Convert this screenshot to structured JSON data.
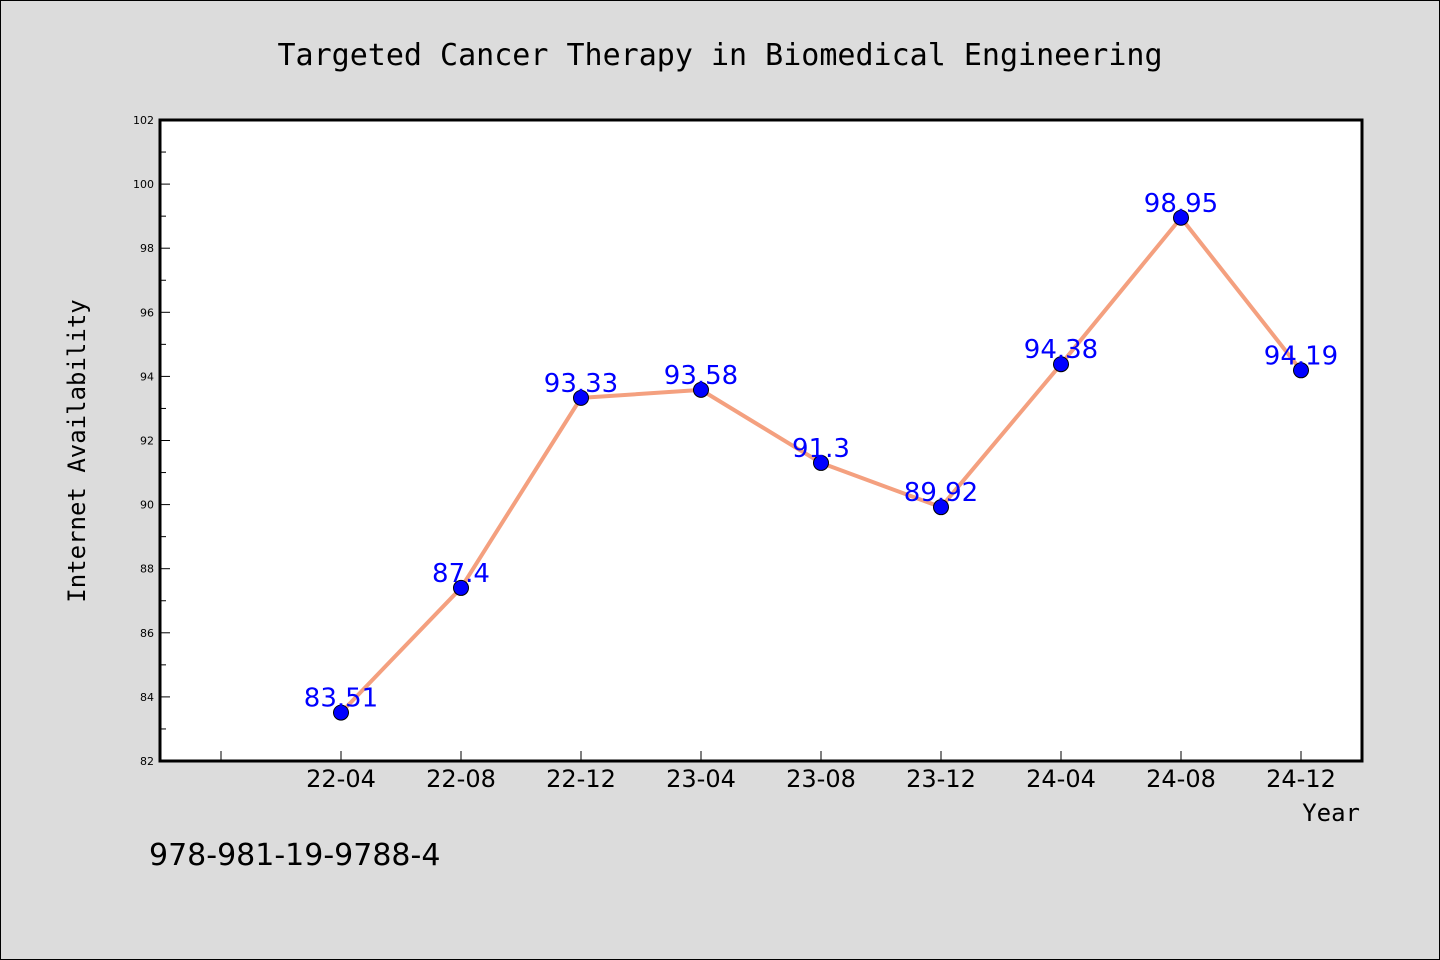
{
  "chart_data": {
    "type": "line",
    "title": "Targeted Cancer Therapy in Biomedical Engineering",
    "xlabel": "Year",
    "ylabel": "Internet Availability",
    "categories": [
      "22-04",
      "22-08",
      "22-12",
      "23-04",
      "23-08",
      "23-12",
      "24-04",
      "24-08",
      "24-12"
    ],
    "values": [
      83.51,
      87.4,
      93.33,
      93.58,
      91.3,
      89.92,
      94.38,
      98.95,
      94.19
    ],
    "data_labels": [
      "83.51",
      "87.4",
      "93.33",
      "93.58",
      "91.3",
      "89.92",
      "94.38",
      "98.95",
      "94.19"
    ],
    "ylim": [
      82,
      102
    ],
    "ytick_labels": [
      "82",
      "84",
      "86",
      "88",
      "90",
      "92",
      "94",
      "96",
      "98",
      "100",
      "102"
    ],
    "grid": false,
    "legend": "none",
    "colors": {
      "line": "#f4a07f",
      "marker": "#0000ff",
      "data_label": "#0000ff",
      "background": "#dcdcdc",
      "plot_background": "#ffffff"
    }
  },
  "footer": {
    "isbn": "978-981-19-9788-4"
  }
}
